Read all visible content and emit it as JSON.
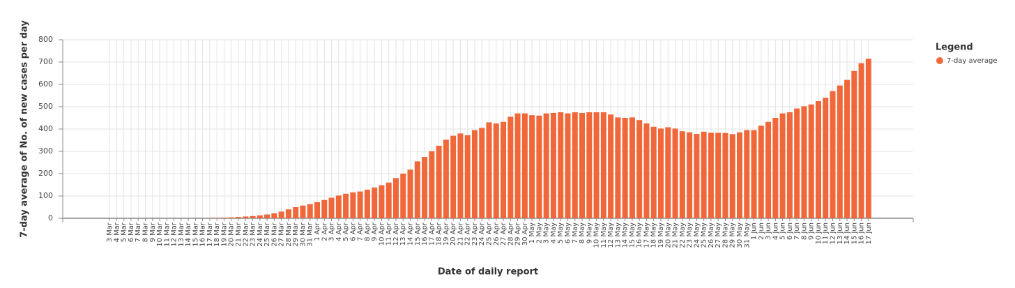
{
  "chart_data": {
    "type": "bar",
    "y_label": "7-day average of No. of new cases per day",
    "x_label": "Date of daily report",
    "legend_title": "Legend",
    "legend": "top-right",
    "grid": true,
    "ylim": [
      0,
      800
    ],
    "yticks": [
      0,
      100,
      200,
      300,
      400,
      500,
      600,
      700,
      800
    ],
    "categories": [
      "3 Mar",
      "4 Mar",
      "5 Mar",
      "6 Mar",
      "7 Mar",
      "8 Mar",
      "9 Mar",
      "10 Mar",
      "11 Mar",
      "12 Mar",
      "13 Mar",
      "14 Mar",
      "15 Mar",
      "16 Mar",
      "17 Mar",
      "18 Mar",
      "19 Mar",
      "20 Mar",
      "21 Mar",
      "22 Mar",
      "23 Mar",
      "24 Mar",
      "25 Mar",
      "26 Mar",
      "27 Mar",
      "28 Mar",
      "29 Mar",
      "30 Mar",
      "31 Mar",
      "1 Apr",
      "2 Apr",
      "3 Apr",
      "4 Apr",
      "5 Apr",
      "6 Apr",
      "7 Apr",
      "8 Apr",
      "9 Apr",
      "10 Apr",
      "11 Apr",
      "12 Apr",
      "13 Apr",
      "14 Apr",
      "15 Apr",
      "16 Apr",
      "17 Apr",
      "18 Apr",
      "19 Apr",
      "20 Apr",
      "21 Apr",
      "22 Apr",
      "23 Apr",
      "24 Apr",
      "25 Apr",
      "26 Apr",
      "27 Apr",
      "28 Apr",
      "29 Apr",
      "30 Apr",
      "1 May",
      "2 May",
      "3 May",
      "4 May",
      "5 May",
      "6 May",
      "7 May",
      "8 May",
      "9 May",
      "10 May",
      "11 May",
      "12 May",
      "13 May",
      "14 May",
      "15 May",
      "16 May",
      "17 May",
      "18 May",
      "19 May",
      "20 May",
      "21 May",
      "22 May",
      "23 May",
      "24 May",
      "25 May",
      "26 May",
      "27 May",
      "28 May",
      "29 May",
      "30 May",
      "31 May",
      "1 Jun",
      "2 Jun",
      "3 Jun",
      "4 Jun",
      "5 Jun",
      "6 Jun",
      "7 Jun",
      "8 Jun",
      "9 Jun",
      "10 Jun",
      "11 Jun",
      "12 Jun",
      "13 Jun",
      "14 Jun",
      "15 Jun",
      "16 Jun",
      "17 Jun"
    ],
    "series": [
      {
        "name": "7-day average",
        "color": "#f0673a",
        "values": [
          0,
          0,
          0,
          0,
          0,
          0,
          0,
          0,
          0,
          0,
          0,
          0,
          0,
          0,
          1,
          2,
          3,
          4,
          6,
          8,
          10,
          13,
          17,
          22,
          30,
          40,
          50,
          57,
          63,
          72,
          82,
          92,
          102,
          110,
          116,
          120,
          128,
          138,
          148,
          160,
          180,
          200,
          218,
          255,
          275,
          300,
          325,
          352,
          370,
          380,
          372,
          395,
          405,
          430,
          425,
          432,
          455,
          470,
          470,
          462,
          460,
          470,
          472,
          475,
          470,
          475,
          472,
          475,
          475,
          475,
          465,
          452,
          450,
          452,
          440,
          425,
          410,
          402,
          408,
          402,
          390,
          385,
          378,
          388,
          383,
          383,
          382,
          377,
          385,
          395,
          395,
          415,
          432,
          450,
          470,
          475,
          492,
          502,
          510,
          525,
          540,
          570,
          595,
          620,
          660,
          695,
          715
        ]
      }
    ]
  }
}
